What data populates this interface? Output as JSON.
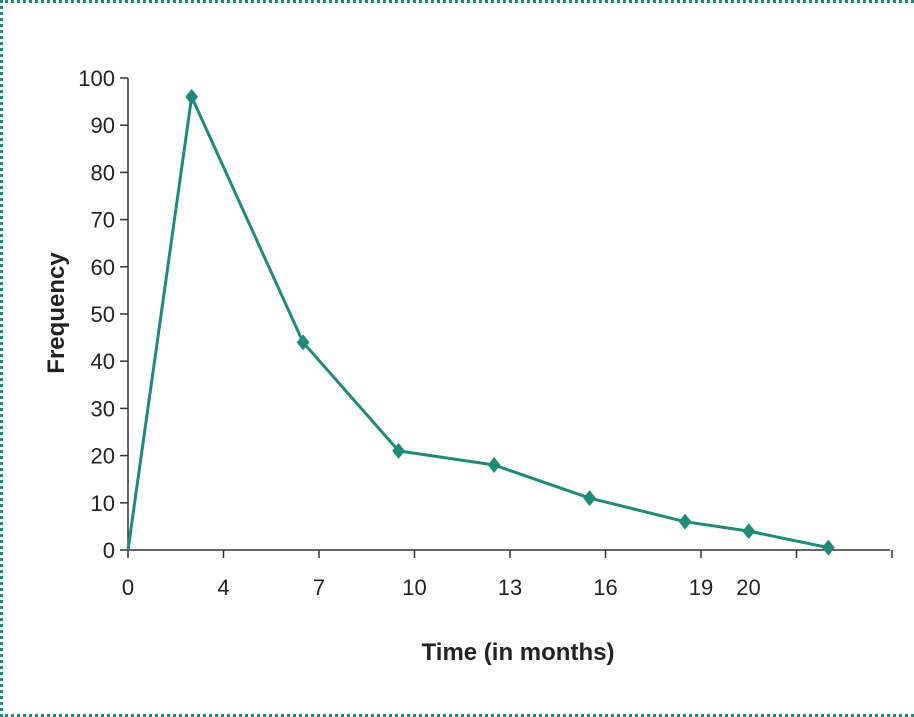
{
  "chart_data": {
    "type": "line",
    "title": "",
    "xlabel": "Time (in months)",
    "ylabel": "Frequency",
    "x_tick_labels": [
      "0",
      "4",
      "7",
      "10",
      "13",
      "16",
      "19",
      "20"
    ],
    "y_ticks": [
      0,
      10,
      20,
      30,
      40,
      50,
      60,
      70,
      80,
      90,
      100
    ],
    "ylim": [
      0,
      100
    ],
    "grid": false,
    "series": [
      {
        "x": [
          "0",
          "2",
          "5.5",
          "8.5",
          "11.5",
          "14.5",
          "17.5",
          "19.5",
          "22"
        ],
        "values": [
          0,
          96,
          44,
          21,
          18,
          11,
          6,
          4,
          0.5
        ]
      }
    ],
    "colors": {
      "line": "#1c8c7a",
      "marker": "#1c8c7a",
      "border": "#1c8c7a",
      "axis": "#333333"
    }
  }
}
